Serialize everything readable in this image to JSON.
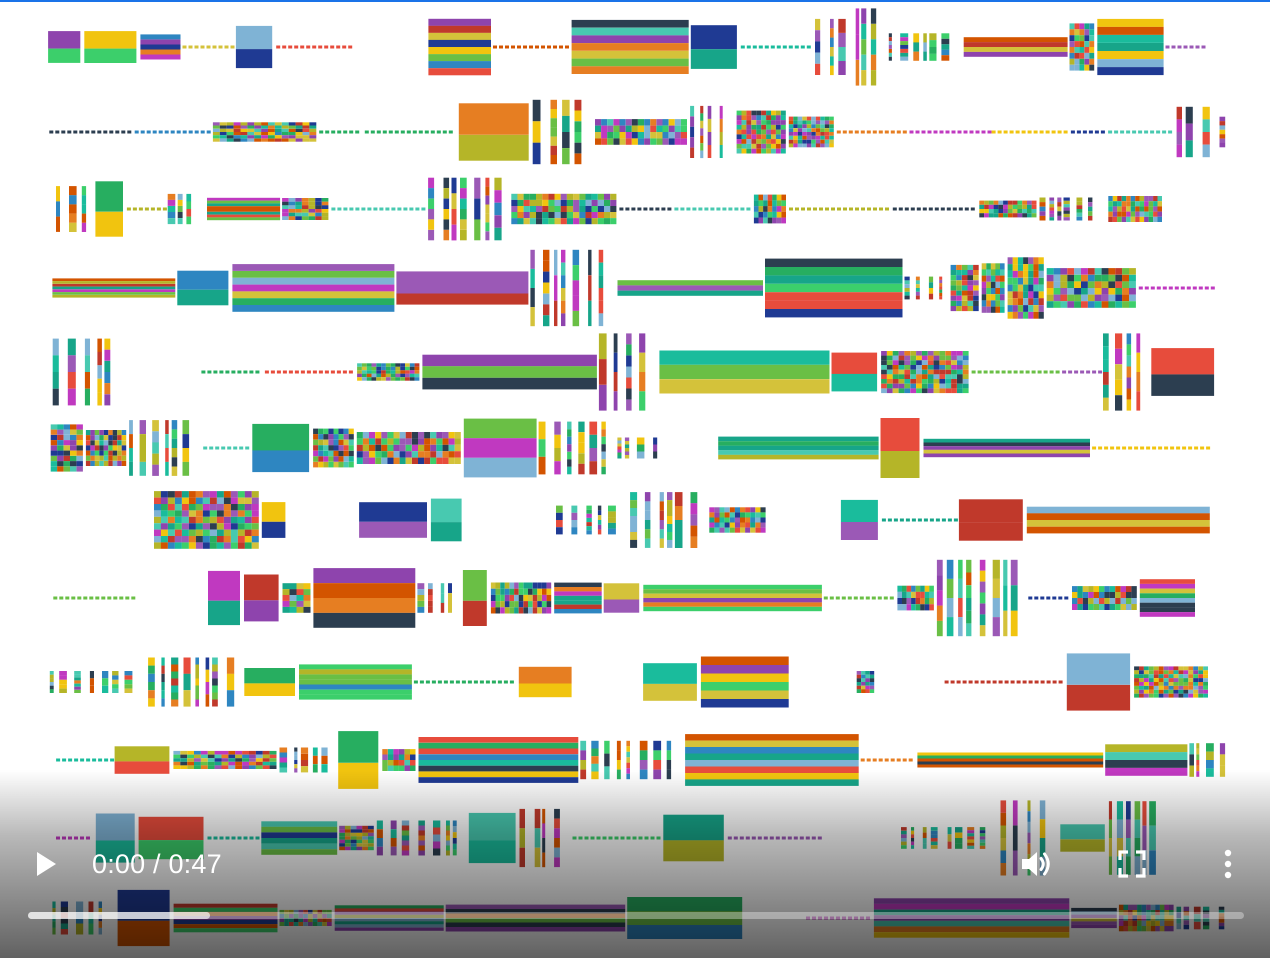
{
  "video": {
    "current_time": "0:00",
    "separator": " / ",
    "duration": "0:47",
    "played_fraction": 0.0,
    "buffered_fraction": 0.15
  },
  "controls": {
    "play_icon": "play-icon",
    "volume_icon": "volume-up-icon",
    "fullscreen_icon": "fullscreen-icon",
    "more_icon": "more-vertical-icon"
  },
  "colors": {
    "accent_border": "#1a73e8",
    "palette": [
      "#c0392b",
      "#e74c3c",
      "#27ae60",
      "#6abf45",
      "#2e86c1",
      "#1f3a93",
      "#8e44ad",
      "#c039c0",
      "#b5b528",
      "#d4c23a",
      "#17a589",
      "#48c9b0",
      "#e67e22",
      "#f1c40f",
      "#3ccf6b",
      "#9b59b6",
      "#1abc9c",
      "#d35400",
      "#2c3e50",
      "#7fb3d5"
    ]
  }
}
